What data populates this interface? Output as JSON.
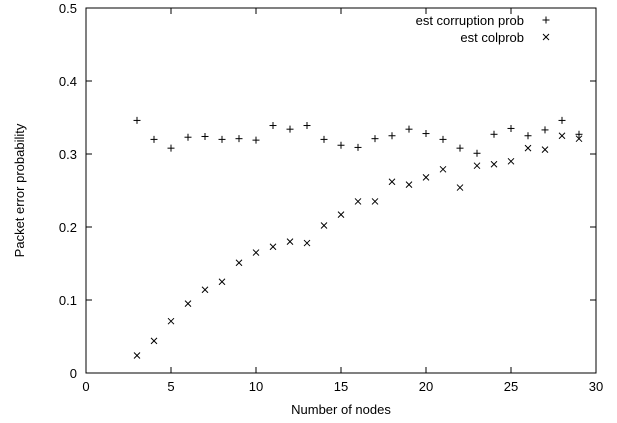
{
  "chart_data": {
    "type": "scatter",
    "xlabel": "Number of nodes",
    "ylabel": "Packet error probability",
    "xlim": [
      0,
      30
    ],
    "ylim": [
      0,
      0.5
    ],
    "xticks": [
      0,
      5,
      10,
      15,
      20,
      25,
      30
    ],
    "yticks": [
      0,
      0.1,
      0.2,
      0.3,
      0.4,
      0.5
    ],
    "grid": false,
    "legend_position": "top-right",
    "series": [
      {
        "name": "est corruption prob",
        "marker": "plus",
        "points": [
          [
            3,
            0.346
          ],
          [
            4,
            0.32
          ],
          [
            5,
            0.308
          ],
          [
            6,
            0.323
          ],
          [
            7,
            0.324
          ],
          [
            8,
            0.32
          ],
          [
            9,
            0.321
          ],
          [
            10,
            0.319
          ],
          [
            11,
            0.339
          ],
          [
            12,
            0.334
          ],
          [
            13,
            0.339
          ],
          [
            14,
            0.32
          ],
          [
            15,
            0.312
          ],
          [
            16,
            0.309
          ],
          [
            17,
            0.321
          ],
          [
            18,
            0.325
          ],
          [
            19,
            0.334
          ],
          [
            20,
            0.328
          ],
          [
            21,
            0.32
          ],
          [
            22,
            0.308
          ],
          [
            23,
            0.301
          ],
          [
            24,
            0.327
          ],
          [
            25,
            0.335
          ],
          [
            26,
            0.325
          ],
          [
            27,
            0.333
          ],
          [
            28,
            0.346
          ],
          [
            29,
            0.327
          ]
        ]
      },
      {
        "name": "est colprob",
        "marker": "cross",
        "points": [
          [
            3,
            0.024
          ],
          [
            4,
            0.044
          ],
          [
            5,
            0.071
          ],
          [
            6,
            0.095
          ],
          [
            7,
            0.114
          ],
          [
            8,
            0.125
          ],
          [
            9,
            0.151
          ],
          [
            10,
            0.165
          ],
          [
            11,
            0.173
          ],
          [
            12,
            0.18
          ],
          [
            13,
            0.178
          ],
          [
            14,
            0.202
          ],
          [
            15,
            0.217
          ],
          [
            16,
            0.235
          ],
          [
            17,
            0.235
          ],
          [
            18,
            0.262
          ],
          [
            19,
            0.258
          ],
          [
            20,
            0.268
          ],
          [
            21,
            0.279
          ],
          [
            22,
            0.254
          ],
          [
            23,
            0.284
          ],
          [
            24,
            0.286
          ],
          [
            25,
            0.29
          ],
          [
            26,
            0.308
          ],
          [
            27,
            0.306
          ],
          [
            28,
            0.325
          ],
          [
            29,
            0.321
          ]
        ]
      }
    ]
  }
}
